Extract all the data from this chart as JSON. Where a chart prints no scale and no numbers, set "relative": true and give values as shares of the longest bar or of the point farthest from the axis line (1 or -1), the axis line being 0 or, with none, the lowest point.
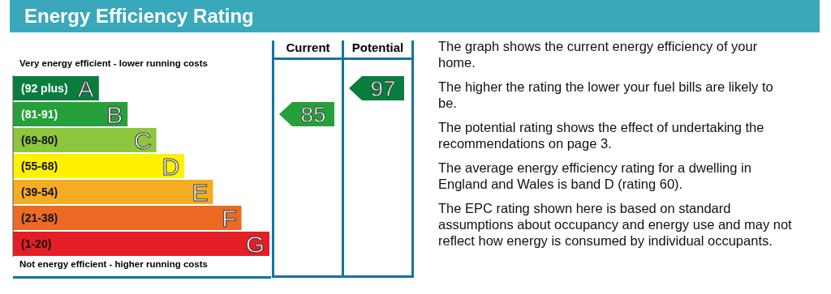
{
  "chart_data": {
    "type": "bar",
    "orientation": "horizontal",
    "relative": true,
    "title": "Energy Efficiency Rating",
    "categories": [
      "(92 plus)",
      "(81-91)",
      "(69-80)",
      "(55-68)",
      "(39-54)",
      "(21-38)",
      "(1-20)"
    ],
    "values": [
      0.335,
      0.447,
      0.559,
      0.668,
      0.78,
      0.891,
      1
    ],
    "colors": [
      "#0a7d3e",
      "#26a03a",
      "#8dc63f",
      "#fff200",
      "#f5ac22",
      "#ec6a24",
      "#e31e24"
    ],
    "annotations": [
      "Very energy efficient - lower running costs",
      "Not energy efficient - higher running costs",
      "Current",
      "Potential",
      {
        "text": "A",
        "y": "(92 plus)"
      },
      {
        "text": "B",
        "y": "(81-91)"
      },
      {
        "text": "C",
        "y": "(69-80)"
      },
      {
        "text": "D",
        "y": "(55-68)"
      },
      {
        "text": "E",
        "y": "(39-54)"
      },
      {
        "text": "F",
        "y": "(21-38)"
      },
      {
        "text": "G",
        "y": "(1-20)"
      },
      "85",
      "97",
      "The graph shows the current energy efficiency of your home.",
      "The higher the rating the lower your fuel bills are likely to be.",
      "The potential rating shows the effect of undertaking the recommendations on page 3.",
      "The average energy efficiency rating for a dwelling in England and Wales is band D (rating 60).",
      "The EPC rating shown here is based on standard assumptions about occupancy and energy use and may not reflect how energy is consumed by individual occupants."
    ]
  }
}
